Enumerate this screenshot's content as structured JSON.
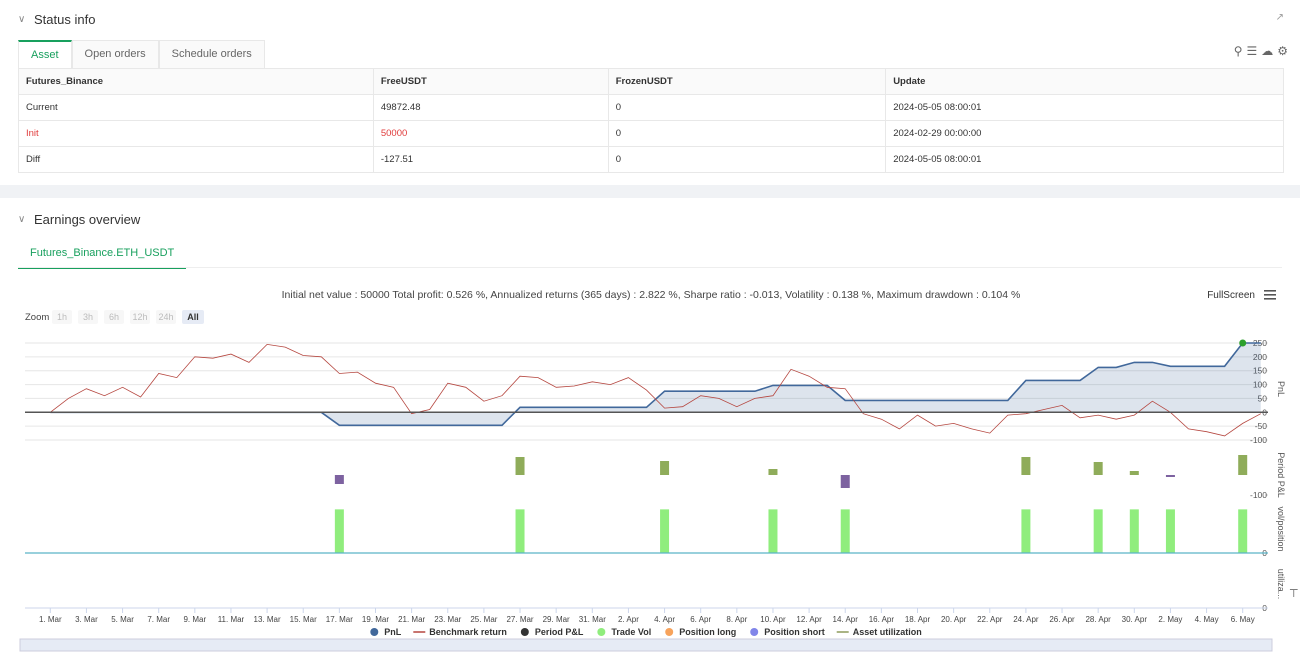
{
  "status_info": {
    "title": "Status info",
    "tabs": [
      "Asset",
      "Open orders",
      "Schedule orders"
    ],
    "table": {
      "header": [
        "Futures_Binance",
        "FreeUSDT",
        "FrozenUSDT",
        "Update"
      ],
      "rows": [
        [
          "Current",
          "49872.48",
          "0",
          "2024-05-05 08:00:01"
        ],
        [
          "Init",
          "50000",
          "0",
          "2024-02-29 00:00:00"
        ],
        [
          "Diff",
          "-127.51",
          "0",
          "2024-05-05 08:00:01"
        ]
      ]
    }
  },
  "earnings": {
    "title": "Earnings overview",
    "tab": "Futures_Binance.ETH_USDT",
    "summary": "Initial net value : 50000 Total profit: 0.526 %, Annualized returns (365 days) : 2.822 %, Sharpe ratio : -0.013, Volatility : 0.138 %, Maximum drawdown : 0.104 %",
    "fullscreen": "FullScreen",
    "zoom": {
      "label": "Zoom",
      "buttons": [
        "1h",
        "3h",
        "6h",
        "12h",
        "24h",
        "All"
      ]
    }
  },
  "chart": {
    "type": "line",
    "xlim": [
      -1.4,
      67.4
    ],
    "xticks": [
      {
        "value": 0,
        "label": "1. Mar"
      },
      {
        "value": 2,
        "label": "3. Mar"
      },
      {
        "value": 4,
        "label": "5. Mar"
      },
      {
        "value": 6,
        "label": "7. Mar"
      },
      {
        "value": 8,
        "label": "9. Mar"
      },
      {
        "value": 10,
        "label": "11. Mar"
      },
      {
        "value": 12,
        "label": "13. Mar"
      },
      {
        "value": 14,
        "label": "15. Mar"
      },
      {
        "value": 16,
        "label": "17. Mar"
      },
      {
        "value": 18,
        "label": "19. Mar"
      },
      {
        "value": 20,
        "label": "21. Mar"
      },
      {
        "value": 22,
        "label": "23. Mar"
      },
      {
        "value": 24,
        "label": "25. Mar"
      },
      {
        "value": 26,
        "label": "27. Mar"
      },
      {
        "value": 28,
        "label": "29. Mar"
      },
      {
        "value": 30,
        "label": "31. Mar"
      },
      {
        "value": 32,
        "label": "2. Apr"
      },
      {
        "value": 34,
        "label": "4. Apr"
      },
      {
        "value": 36,
        "label": "6. Apr"
      },
      {
        "value": 38,
        "label": "8. Apr"
      },
      {
        "value": 40,
        "label": "10. Apr"
      },
      {
        "value": 42,
        "label": "12. Apr"
      },
      {
        "value": 44,
        "label": "14. Apr"
      },
      {
        "value": 46,
        "label": "16. Apr"
      },
      {
        "value": 48,
        "label": "18. Apr"
      },
      {
        "value": 50,
        "label": "20. Apr"
      },
      {
        "value": 52,
        "label": "22. Apr"
      },
      {
        "value": 54,
        "label": "24. Apr"
      },
      {
        "value": 56,
        "label": "26. Apr"
      },
      {
        "value": 58,
        "label": "28. Apr"
      },
      {
        "value": 60,
        "label": "30. Apr"
      },
      {
        "value": 62,
        "label": "2. May"
      },
      {
        "value": 64,
        "label": "4. May"
      },
      {
        "value": 66,
        "label": "6. May"
      }
    ],
    "panels": [
      {
        "axis_title": "PnL",
        "ylim": [
          -118,
          286
        ],
        "yticks": [
          250,
          200,
          150,
          100,
          50,
          0,
          -50,
          -100
        ],
        "series": [
          {
            "name": "PnL",
            "color": "#41689b",
            "type": "area",
            "x": [
              0,
              15,
              16,
              25,
              26,
              33,
              34,
              39,
              40,
              43,
              44,
              53,
              54,
              57,
              58,
              59,
              60,
              61,
              62,
              65,
              66,
              67
            ],
            "values": [
              0,
              0,
              -47,
              -47,
              18,
              18,
              76,
              76,
              97,
              97,
              43,
              43,
              115,
              115,
              162,
              162,
              180,
              180,
              166,
              166,
              250,
              250
            ]
          },
          {
            "name": "Benchmark return",
            "color": "#b5463f",
            "type": "line",
            "x": [
              0,
              1,
              2,
              3,
              4,
              5,
              6,
              7,
              8,
              9,
              10,
              11,
              12,
              13,
              14,
              15,
              16,
              17,
              18,
              19,
              20,
              21,
              22,
              23,
              24,
              25,
              26,
              27,
              28,
              29,
              30,
              31,
              32,
              33,
              34,
              35,
              36,
              37,
              38,
              39,
              40,
              41,
              42,
              43,
              44,
              45,
              46,
              47,
              48,
              49,
              50,
              51,
              52,
              53,
              54,
              55,
              56,
              57,
              58,
              59,
              60,
              61,
              62,
              63,
              64,
              65,
              66,
              67
            ],
            "values": [
              0,
              50,
              85,
              60,
              90,
              55,
              140,
              125,
              200,
              195,
              210,
              180,
              245,
              235,
              205,
              200,
              140,
              145,
              105,
              90,
              -5,
              10,
              105,
              90,
              40,
              60,
              130,
              125,
              90,
              95,
              110,
              100,
              125,
              80,
              15,
              20,
              60,
              50,
              20,
              50,
              60,
              155,
              130,
              90,
              85,
              -5,
              -25,
              -60,
              -10,
              -50,
              -40,
              -60,
              -75,
              -10,
              -5,
              10,
              25,
              -20,
              -10,
              -25,
              -10,
              40,
              0,
              -60,
              -70,
              -85,
              -40,
              -5
            ]
          }
        ]
      },
      {
        "axis_title": "Period P&L",
        "ylim": [
          -125,
          125
        ],
        "yticks": [
          -100
        ],
        "series": [
          {
            "name": "Period P&L",
            "color": "#333333",
            "positive_color": "#8fac5a",
            "negative_color": "#7d62a0",
            "type": "column",
            "x": [
              16,
              26,
              34,
              40,
              44,
              54,
              58,
              60,
              62,
              66
            ],
            "values": [
              -45,
              90,
              70,
              30,
              -65,
              90,
              65,
              20,
              -10,
              100
            ]
          }
        ]
      },
      {
        "axis_title": "vol/position",
        "ylim": [
          0,
          1.1
        ],
        "yticks": [
          0
        ],
        "series": [
          {
            "name": "Trade Vol",
            "color": "#90ed7d",
            "type": "column",
            "x": [
              16,
              26,
              34,
              40,
              44,
              54,
              58,
              60,
              62,
              66
            ],
            "values": [
              1,
              1,
              1,
              1,
              1,
              1,
              1,
              1,
              1,
              1
            ]
          },
          {
            "name": "Position long",
            "color": "#f7a35c",
            "type": "column",
            "x": [],
            "values": []
          },
          {
            "name": "Position short",
            "color": "#8085e9",
            "type": "column",
            "x": [],
            "values": []
          }
        ]
      },
      {
        "axis_title": "utiliza...",
        "ylim": [
          0,
          1
        ],
        "yticks": [
          0
        ],
        "series": [
          {
            "name": "Asset utilization",
            "color": "#8d9b5a",
            "type": "line",
            "x": [],
            "values": []
          }
        ]
      }
    ]
  }
}
